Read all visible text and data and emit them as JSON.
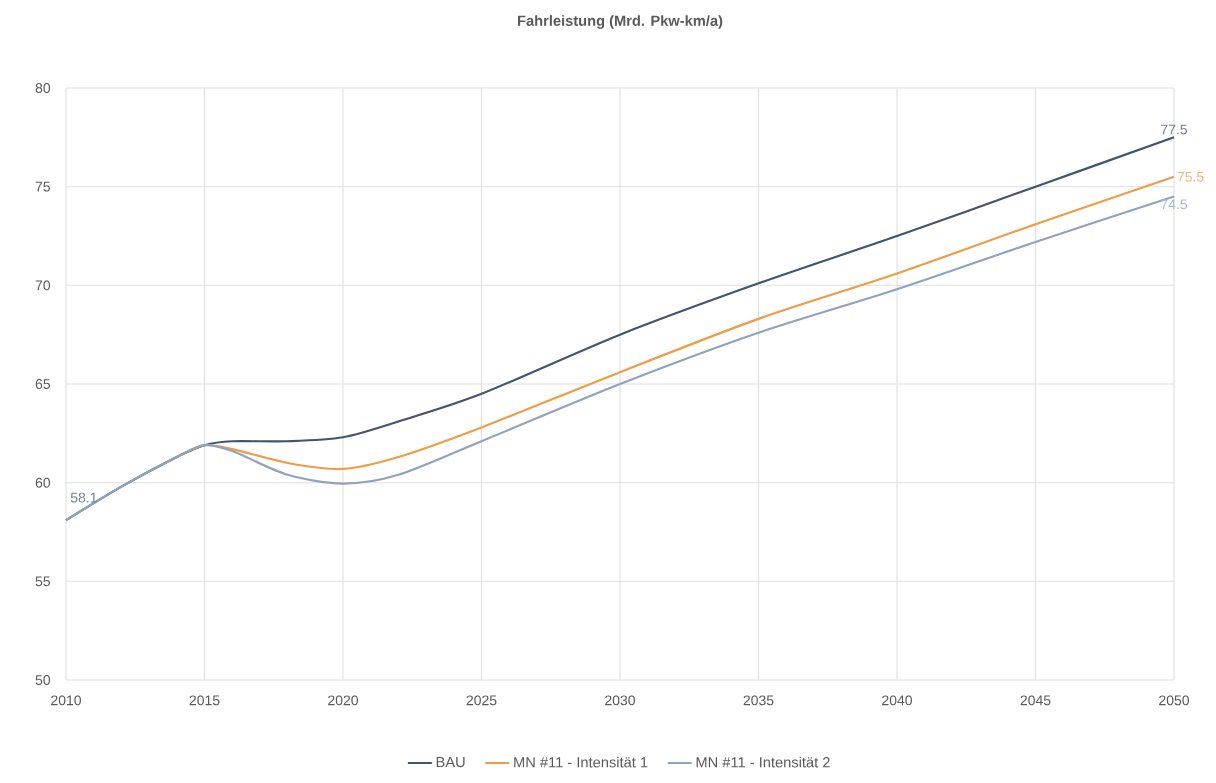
{
  "chart_data": {
    "type": "line",
    "title": "Fahrleistung (Mrd. Pkw-km/a)",
    "x": [
      2010,
      2012,
      2014,
      2015,
      2016,
      2018,
      2020,
      2022,
      2025,
      2030,
      2035,
      2040,
      2045,
      2050
    ],
    "series": [
      {
        "name": "BAU",
        "color": "#44546a",
        "values": [
          58.1,
          59.8,
          61.3,
          61.9,
          62.1,
          62.1,
          62.3,
          63.1,
          64.5,
          67.5,
          70.1,
          72.5,
          75.0,
          77.5
        ],
        "value_labels": [
          "58.1",
          null,
          null,
          null,
          null,
          null,
          null,
          null,
          null,
          null,
          null,
          null,
          null,
          "77.5"
        ]
      },
      {
        "name": "MN #11 - Intensität 1",
        "color": "#ed9d47",
        "values": [
          null,
          null,
          61.3,
          61.9,
          61.7,
          61.0,
          60.7,
          61.3,
          62.8,
          65.6,
          68.3,
          70.6,
          73.1,
          75.5
        ],
        "value_labels": [
          null,
          null,
          null,
          null,
          null,
          null,
          null,
          null,
          null,
          null,
          null,
          null,
          null,
          "75.5"
        ]
      },
      {
        "name": "MN #11 - Intensität 2",
        "color": "#8fa3bd",
        "values": [
          58.1,
          59.8,
          61.3,
          61.9,
          61.6,
          60.4,
          59.95,
          60.4,
          62.1,
          65.0,
          67.6,
          69.8,
          72.2,
          74.5
        ],
        "value_labels": [
          null,
          null,
          null,
          null,
          null,
          null,
          null,
          null,
          null,
          null,
          null,
          null,
          null,
          "74.5"
        ]
      }
    ],
    "xlim": [
      2010,
      2050
    ],
    "xticks": [
      2010,
      2015,
      2020,
      2025,
      2030,
      2035,
      2040,
      2045,
      2050
    ],
    "ylim": [
      50,
      80
    ],
    "yticks": [
      50,
      55,
      60,
      65,
      70,
      75,
      80
    ],
    "grid": true,
    "legend": "bottom"
  }
}
